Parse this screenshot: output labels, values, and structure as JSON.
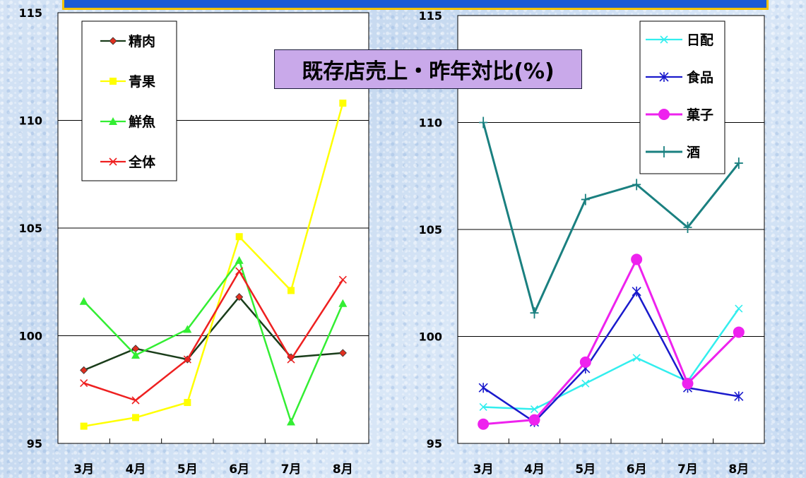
{
  "title": "既存店売上・昨年対比(%)",
  "chart_data": [
    {
      "type": "line",
      "categories": [
        "3月",
        "4月",
        "5月",
        "6月",
        "7月",
        "8月"
      ],
      "ylim": [
        95,
        115
      ],
      "yticks": [
        "95",
        "100",
        "105",
        "110",
        "115"
      ],
      "grid": true,
      "legend_position": "top-left",
      "series": [
        {
          "name": "精肉",
          "values": [
            98.4,
            99.4,
            98.9,
            101.8,
            99.0,
            99.2
          ],
          "color": "#1a3d1a",
          "marker": "diamond",
          "marker_color": "#e03020"
        },
        {
          "name": "青果",
          "values": [
            95.8,
            96.2,
            96.9,
            104.6,
            102.1,
            110.8
          ],
          "color": "#ffff00",
          "marker": "square",
          "marker_color": "#ffff00"
        },
        {
          "name": "鮮魚",
          "values": [
            101.6,
            99.1,
            100.3,
            103.5,
            96.0,
            101.5
          ],
          "color": "#33ee33",
          "marker": "triangle",
          "marker_color": "#33ee33"
        },
        {
          "name": "全体",
          "values": [
            97.8,
            97.0,
            98.9,
            103.0,
            98.9,
            102.6
          ],
          "color": "#ee2020",
          "marker": "x",
          "marker_color": "#ee2020"
        }
      ]
    },
    {
      "type": "line",
      "categories": [
        "3月",
        "4月",
        "5月",
        "6月",
        "7月",
        "8月"
      ],
      "ylim": [
        95,
        115
      ],
      "yticks": [
        "95",
        "100",
        "105",
        "110",
        "115"
      ],
      "grid": true,
      "legend_position": "top-right",
      "series": [
        {
          "name": "日配",
          "values": [
            96.7,
            96.6,
            97.8,
            99.0,
            97.9,
            101.3
          ],
          "color": "#33eeee",
          "marker": "x",
          "marker_color": "#33eeee"
        },
        {
          "name": "食品",
          "values": [
            97.6,
            96.0,
            98.5,
            102.1,
            97.6,
            97.2
          ],
          "color": "#1a1acc",
          "marker": "star",
          "marker_color": "#1a1acc"
        },
        {
          "name": "菓子",
          "values": [
            95.9,
            96.1,
            98.8,
            103.6,
            97.8,
            100.2
          ],
          "color": "#ee22ee",
          "marker": "circle",
          "marker_color": "#ee22ee"
        },
        {
          "name": "酒",
          "values": [
            110.0,
            101.1,
            106.4,
            107.1,
            105.1,
            108.1
          ],
          "color": "#1a8080",
          "marker": "plus",
          "marker_color": "#1a8080"
        }
      ]
    }
  ]
}
